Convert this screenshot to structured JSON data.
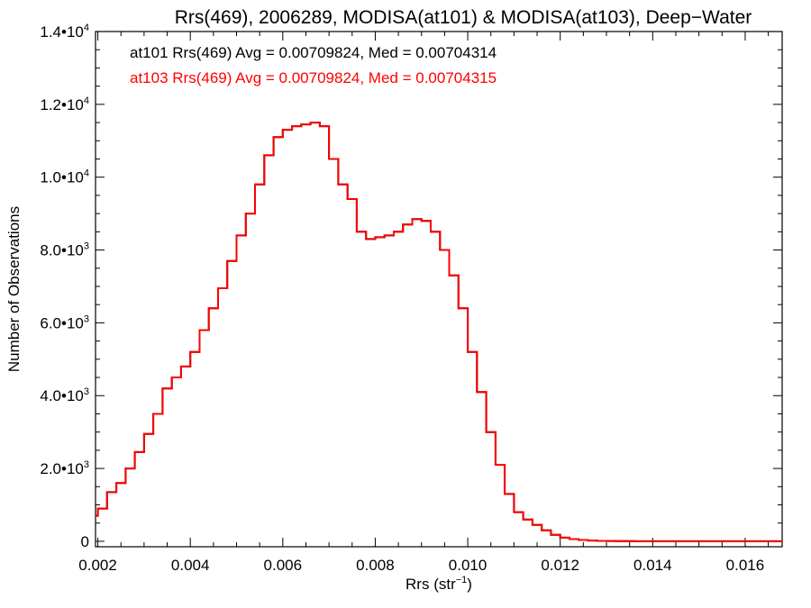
{
  "chart_data": {
    "type": "line",
    "step": true,
    "title": "Rrs(469), 2006289, MODISA(at101) & MODISA(at103), Deep−Water",
    "xlabel_main": "Rrs (str",
    "xlabel_sup": "−1",
    "xlabel_end": ")",
    "ylabel": "Number of Observations",
    "xlim": [
      0.00195,
      0.0168
    ],
    "ylim": [
      -150,
      14000
    ],
    "x_ticks": [
      {
        "value": 0.002,
        "label": "0.002"
      },
      {
        "value": 0.004,
        "label": "0.004"
      },
      {
        "value": 0.006,
        "label": "0.006"
      },
      {
        "value": 0.008,
        "label": "0.008"
      },
      {
        "value": 0.01,
        "label": "0.010"
      },
      {
        "value": 0.012,
        "label": "0.012"
      },
      {
        "value": 0.014,
        "label": "0.014"
      },
      {
        "value": 0.016,
        "label": "0.016"
      }
    ],
    "y_ticks": [
      {
        "value": 0,
        "label": "0",
        "exp": ""
      },
      {
        "value": 2000,
        "label": "2.0•10",
        "exp": "3"
      },
      {
        "value": 4000,
        "label": "4.0•10",
        "exp": "3"
      },
      {
        "value": 6000,
        "label": "6.0•10",
        "exp": "3"
      },
      {
        "value": 8000,
        "label": "8.0•10",
        "exp": "3"
      },
      {
        "value": 10000,
        "label": "1.0•10",
        "exp": "4"
      },
      {
        "value": 12000,
        "label": "1.2•10",
        "exp": "4"
      },
      {
        "value": 14000,
        "label": "1.4•10",
        "exp": "4"
      }
    ],
    "legend": [
      {
        "text": "at101 Rrs(469) Avg = 0.00709824, Med = 0.00704314",
        "color": "#000000"
      },
      {
        "text": "at103 Rrs(469) Avg = 0.00709824, Med = 0.00704315",
        "color": "#ff0000"
      }
    ],
    "legend_placement": "top-left",
    "grid": false,
    "series": [
      {
        "name": "at101",
        "color": "#000000",
        "x": [
          0.00195,
          0.002,
          0.0022,
          0.0024,
          0.0026,
          0.0028,
          0.003,
          0.0032,
          0.0034,
          0.0036,
          0.0038,
          0.004,
          0.0042,
          0.0044,
          0.0046,
          0.0048,
          0.005,
          0.0052,
          0.0054,
          0.0056,
          0.0058,
          0.006,
          0.0062,
          0.0064,
          0.0066,
          0.0067,
          0.0068,
          0.007,
          0.0072,
          0.0074,
          0.0076,
          0.0078,
          0.008,
          0.0082,
          0.0084,
          0.0086,
          0.0088,
          0.009,
          0.0092,
          0.0094,
          0.0096,
          0.0098,
          0.01,
          0.0102,
          0.0104,
          0.0106,
          0.0108,
          0.011,
          0.0112,
          0.0114,
          0.0116,
          0.0118,
          0.012,
          0.0122,
          0.0124,
          0.0126,
          0.0128,
          0.013,
          0.0132,
          0.0134,
          0.0136,
          0.0138,
          0.014,
          0.0142,
          0.0144,
          0.0146,
          0.0148,
          0.015,
          0.0155,
          0.016,
          0.0165,
          0.0168
        ],
        "y": [
          700,
          900,
          1350,
          1600,
          2000,
          2450,
          2950,
          3500,
          4200,
          4500,
          4800,
          5200,
          5800,
          6400,
          6950,
          7700,
          8400,
          9000,
          9800,
          10600,
          11100,
          11300,
          11400,
          11450,
          11500,
          11500,
          11400,
          10500,
          9800,
          9400,
          8500,
          8300,
          8350,
          8400,
          8500,
          8700,
          8850,
          8800,
          8500,
          8000,
          7300,
          6400,
          5200,
          4100,
          3000,
          2100,
          1300,
          800,
          600,
          450,
          300,
          180,
          100,
          60,
          35,
          20,
          12,
          8,
          5,
          3,
          2,
          1,
          0,
          0,
          0,
          0,
          0,
          0,
          0,
          0,
          0,
          0
        ]
      },
      {
        "name": "at103",
        "color": "#ff0000",
        "x": [
          0.00195,
          0.002,
          0.0022,
          0.0024,
          0.0026,
          0.0028,
          0.003,
          0.0032,
          0.0034,
          0.0036,
          0.0038,
          0.004,
          0.0042,
          0.0044,
          0.0046,
          0.0048,
          0.005,
          0.0052,
          0.0054,
          0.0056,
          0.0058,
          0.006,
          0.0062,
          0.0064,
          0.0066,
          0.0067,
          0.0068,
          0.007,
          0.0072,
          0.0074,
          0.0076,
          0.0078,
          0.008,
          0.0082,
          0.0084,
          0.0086,
          0.0088,
          0.009,
          0.0092,
          0.0094,
          0.0096,
          0.0098,
          0.01,
          0.0102,
          0.0104,
          0.0106,
          0.0108,
          0.011,
          0.0112,
          0.0114,
          0.0116,
          0.0118,
          0.012,
          0.0122,
          0.0124,
          0.0126,
          0.0128,
          0.013,
          0.0132,
          0.0134,
          0.0136,
          0.0138,
          0.014,
          0.0142,
          0.0144,
          0.0146,
          0.0148,
          0.015,
          0.0155,
          0.016,
          0.0165,
          0.0168
        ],
        "y": [
          700,
          900,
          1350,
          1600,
          2000,
          2450,
          2950,
          3500,
          4200,
          4500,
          4800,
          5200,
          5800,
          6400,
          6950,
          7700,
          8400,
          9000,
          9800,
          10600,
          11100,
          11300,
          11400,
          11450,
          11500,
          11500,
          11400,
          10500,
          9800,
          9400,
          8500,
          8300,
          8350,
          8400,
          8500,
          8700,
          8850,
          8800,
          8500,
          8000,
          7300,
          6400,
          5200,
          4100,
          3000,
          2100,
          1300,
          800,
          600,
          450,
          300,
          180,
          100,
          60,
          35,
          20,
          12,
          8,
          5,
          3,
          2,
          1,
          0,
          0,
          0,
          0,
          0,
          0,
          0,
          0,
          0,
          0
        ]
      }
    ]
  }
}
